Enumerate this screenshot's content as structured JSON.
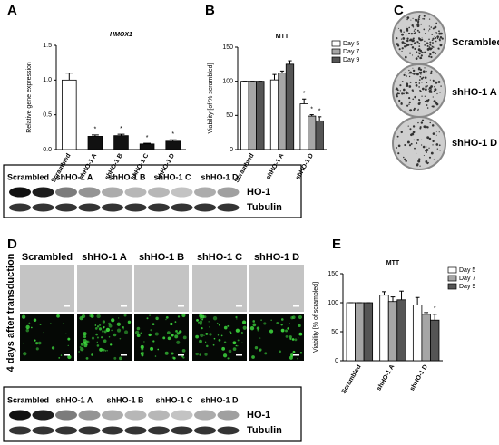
{
  "panel_labels": [
    "A",
    "B",
    "C",
    "D",
    "E"
  ],
  "chart_data": [
    {
      "type": "bar",
      "title": "HMOX1",
      "y_label": "Relative gene expression",
      "categories": [
        "Scrambled",
        "shHO-1 A",
        "shHO-1 B",
        "shHO-1 C",
        "shHO-1 D"
      ],
      "values": [
        1.0,
        0.19,
        0.2,
        0.08,
        0.12
      ],
      "errors": [
        0.1,
        0.02,
        0.02,
        0.01,
        0.02
      ],
      "annotations": [
        null,
        "*",
        "*",
        "*",
        "*"
      ],
      "colors": [
        "#ffffff",
        "#111111",
        "#111111",
        "#111111",
        "#111111"
      ],
      "ylim": [
        0,
        1.5
      ],
      "yticks": [
        {
          "value": 0,
          "label": "0.0"
        },
        0.5,
        {
          "value": 1,
          "label": "1.0"
        },
        1.5
      ]
    },
    {
      "type": "bar",
      "title": "MTT",
      "y_label": "Viability [of % scrambled]",
      "categories": [
        "Scrambled",
        "shHO-1 A",
        "shHO-1 D"
      ],
      "series": [
        {
          "name": "Day 5",
          "color": "#ffffff",
          "values": [
            100,
            102,
            67
          ],
          "errors": [
            0,
            8,
            7
          ],
          "annotations": [
            null,
            null,
            "*"
          ]
        },
        {
          "name": "Day 7",
          "color": "#a6a6a6",
          "values": [
            100,
            112,
            49
          ],
          "errors": [
            0,
            3,
            2
          ],
          "annotations": [
            null,
            null,
            "*"
          ]
        },
        {
          "name": "Day 9",
          "color": "#555555",
          "values": [
            100,
            125,
            42
          ],
          "errors": [
            0,
            5,
            6
          ],
          "annotations": [
            null,
            null,
            "*"
          ]
        }
      ],
      "ylim": [
        0,
        150
      ],
      "yticks": [
        0,
        50,
        100,
        150
      ],
      "legend": "upper right"
    },
    {
      "type": "bar",
      "title": "MTT",
      "y_label": "Viability [% of scrambled]",
      "categories": [
        "Scrambled",
        "shHO-1 A",
        "shHO-1 D"
      ],
      "series": [
        {
          "name": "Day 5",
          "color": "#ffffff",
          "values": [
            100,
            113,
            96
          ],
          "errors": [
            0,
            6,
            13
          ],
          "annotations": [
            null,
            null,
            null
          ]
        },
        {
          "name": "Day 7",
          "color": "#a6a6a6",
          "values": [
            100,
            102,
            80
          ],
          "errors": [
            0,
            8,
            3
          ],
          "annotations": [
            null,
            null,
            null
          ]
        },
        {
          "name": "Day 9",
          "color": "#555555",
          "values": [
            100,
            105,
            70
          ],
          "errors": [
            0,
            15,
            10
          ],
          "annotations": [
            null,
            null,
            "*"
          ]
        }
      ],
      "ylim": [
        0,
        150
      ],
      "yticks": [
        0,
        50,
        100,
        150
      ],
      "legend": "upper right"
    }
  ],
  "colony_labels": [
    "Scrambled",
    "shHO-1 A",
    "shHO-1 D"
  ],
  "blot_top": {
    "lanes": [
      "Scrambled",
      "shHO-1 A",
      "shHO-1 B",
      "shHO-1 C",
      "shHO-1 D"
    ],
    "bands": [
      "HO-1",
      "Tubulin"
    ]
  },
  "image_panel": {
    "columns": [
      "Scrambled",
      "shHO-1 A",
      "shHO-1 B",
      "shHO-1 C",
      "shHO-1 D"
    ],
    "side_label": "4 days after transduction"
  },
  "blot_bottom": {
    "lanes": [
      "Scrambled",
      "shHO-1 A",
      "shHO-1 B",
      "shHO-1 C",
      "shHO-1 D"
    ],
    "bands": [
      "HO-1",
      "Tubulin"
    ]
  }
}
